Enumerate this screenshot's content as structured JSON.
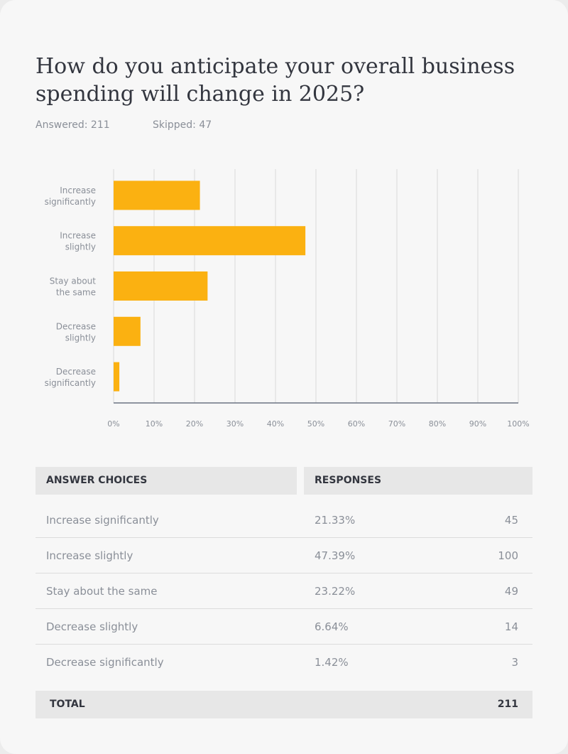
{
  "header": {
    "title": "How do you anticipate your overall business spending will change in 2025?",
    "answered": "Answered: 211",
    "skipped": "Skipped: 47"
  },
  "colors": {
    "bar": "#fbb111",
    "grid": "#d9d9d9",
    "axis": "#6b7482"
  },
  "chart_data": {
    "type": "bar",
    "orientation": "horizontal",
    "categories": [
      [
        "Increase",
        "significantly"
      ],
      [
        "Increase",
        "slightly"
      ],
      [
        "Stay about",
        "the same"
      ],
      [
        "Decrease",
        "slightly"
      ],
      [
        "Decrease",
        "significantly"
      ]
    ],
    "values": [
      21.33,
      47.39,
      23.22,
      6.64,
      1.42
    ],
    "xlim": [
      0,
      100
    ],
    "xticks": [
      0,
      10,
      20,
      30,
      40,
      50,
      60,
      70,
      80,
      90,
      100
    ],
    "xtick_labels": [
      "0%",
      "10%",
      "20%",
      "30%",
      "40%",
      "50%",
      "60%",
      "70%",
      "80%",
      "90%",
      "100%"
    ],
    "grid": true
  },
  "table": {
    "headers": {
      "choices": "ANSWER CHOICES",
      "responses": "RESPONSES"
    },
    "rows": [
      {
        "label": "Increase significantly",
        "percent": "21.33%",
        "count": "45"
      },
      {
        "label": "Increase slightly",
        "percent": "47.39%",
        "count": "100"
      },
      {
        "label": "Stay about the same",
        "percent": "23.22%",
        "count": "49"
      },
      {
        "label": "Decrease slightly",
        "percent": "6.64%",
        "count": "14"
      },
      {
        "label": "Decrease significantly",
        "percent": "1.42%",
        "count": "3"
      }
    ],
    "total": {
      "label": "TOTAL",
      "count": "211"
    }
  }
}
